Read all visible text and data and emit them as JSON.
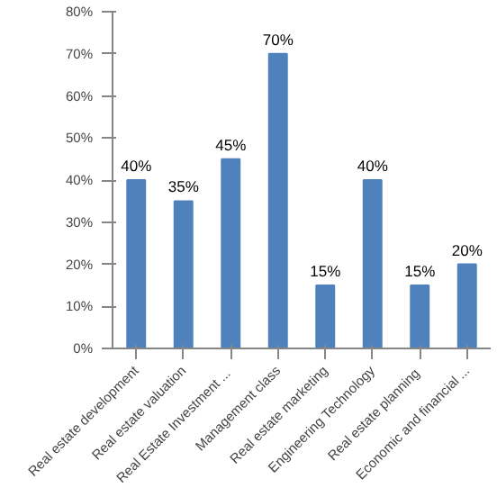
{
  "chart_data": {
    "type": "bar",
    "categories": [
      "Real estate development",
      "Real estate valuation",
      "Real Estate  Investment ...",
      "Management class",
      "Real estate marketing",
      "Engineering Technology",
      "Real estate  planning",
      "Economic and financial ..."
    ],
    "values": [
      40,
      35,
      45,
      70,
      15,
      40,
      15,
      20
    ],
    "value_labels": [
      "40%",
      "35%",
      "45%",
      "70%",
      "15%",
      "40%",
      "15%",
      "20%"
    ],
    "color": "#4f81bd",
    "ylim": [
      0,
      80
    ],
    "yticks": [
      {
        "value": 0,
        "label": "0%"
      },
      {
        "value": 10,
        "label": "10%"
      },
      {
        "value": 20,
        "label": "20%"
      },
      {
        "value": 30,
        "label": "30%"
      },
      {
        "value": 40,
        "label": "40%"
      },
      {
        "value": 50,
        "label": "50%"
      },
      {
        "value": 60,
        "label": "60%"
      },
      {
        "value": 70,
        "label": "70%"
      },
      {
        "value": 80,
        "label": "80%"
      }
    ],
    "grid": false
  }
}
